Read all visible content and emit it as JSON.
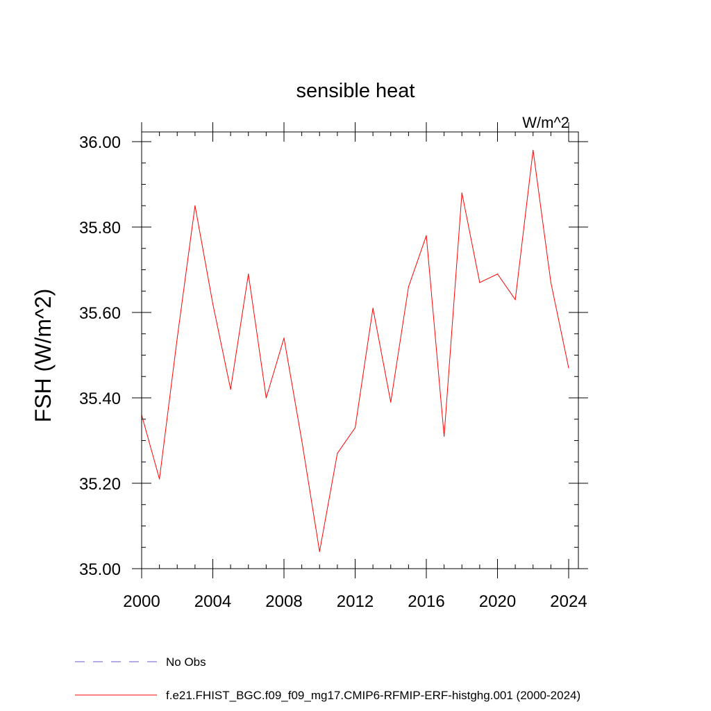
{
  "chart_data": {
    "type": "line",
    "title": "sensible heat",
    "units_label": "W/m^2",
    "ylabel": "FSH  (W/m^2)",
    "xlabel": "",
    "xlim": [
      2000,
      2024
    ],
    "ylim": [
      35.0,
      36.0
    ],
    "x_ticks": [
      2000,
      2004,
      2008,
      2012,
      2016,
      2020,
      2024
    ],
    "x_tick_labels": [
      "2000",
      "2004",
      "2008",
      "2012",
      "2016",
      "2020",
      "2024"
    ],
    "y_ticks": [
      35.0,
      35.2,
      35.4,
      35.6,
      35.8,
      36.0
    ],
    "y_tick_labels": [
      "35.00",
      "35.20",
      "35.40",
      "35.60",
      "35.80",
      "36.00"
    ],
    "x_minor_step": 1,
    "y_minor_step": 0.05,
    "grid": false,
    "series": [
      {
        "name": "f.e21.FHIST_BGC.f09_f09_mg17.CMIP6-RFMIP-ERF-histghg.001 (2000-2024)",
        "color": "#ff0000",
        "x": [
          2000,
          2001,
          2002,
          2003,
          2004,
          2005,
          2006,
          2007,
          2008,
          2009,
          2010,
          2011,
          2012,
          2013,
          2014,
          2015,
          2016,
          2017,
          2018,
          2019,
          2020,
          2021,
          2022,
          2023,
          2024
        ],
        "values": [
          35.36,
          35.21,
          35.54,
          35.85,
          35.62,
          35.42,
          35.69,
          35.4,
          35.54,
          35.3,
          35.04,
          35.27,
          35.33,
          35.61,
          35.39,
          35.66,
          35.78,
          35.31,
          35.88,
          35.67,
          35.69,
          35.63,
          35.98,
          35.67,
          35.47
        ]
      }
    ],
    "legend": {
      "placement": "bottom",
      "entries": [
        {
          "label": "No Obs",
          "color": "#6a5acd",
          "dash": "dashed"
        },
        {
          "label": "f.e21.FHIST_BGC.f09_f09_mg17.CMIP6-RFMIP-ERF-histghg.001 (2000-2024)",
          "color": "#ff0000",
          "dash": "solid"
        }
      ]
    }
  }
}
